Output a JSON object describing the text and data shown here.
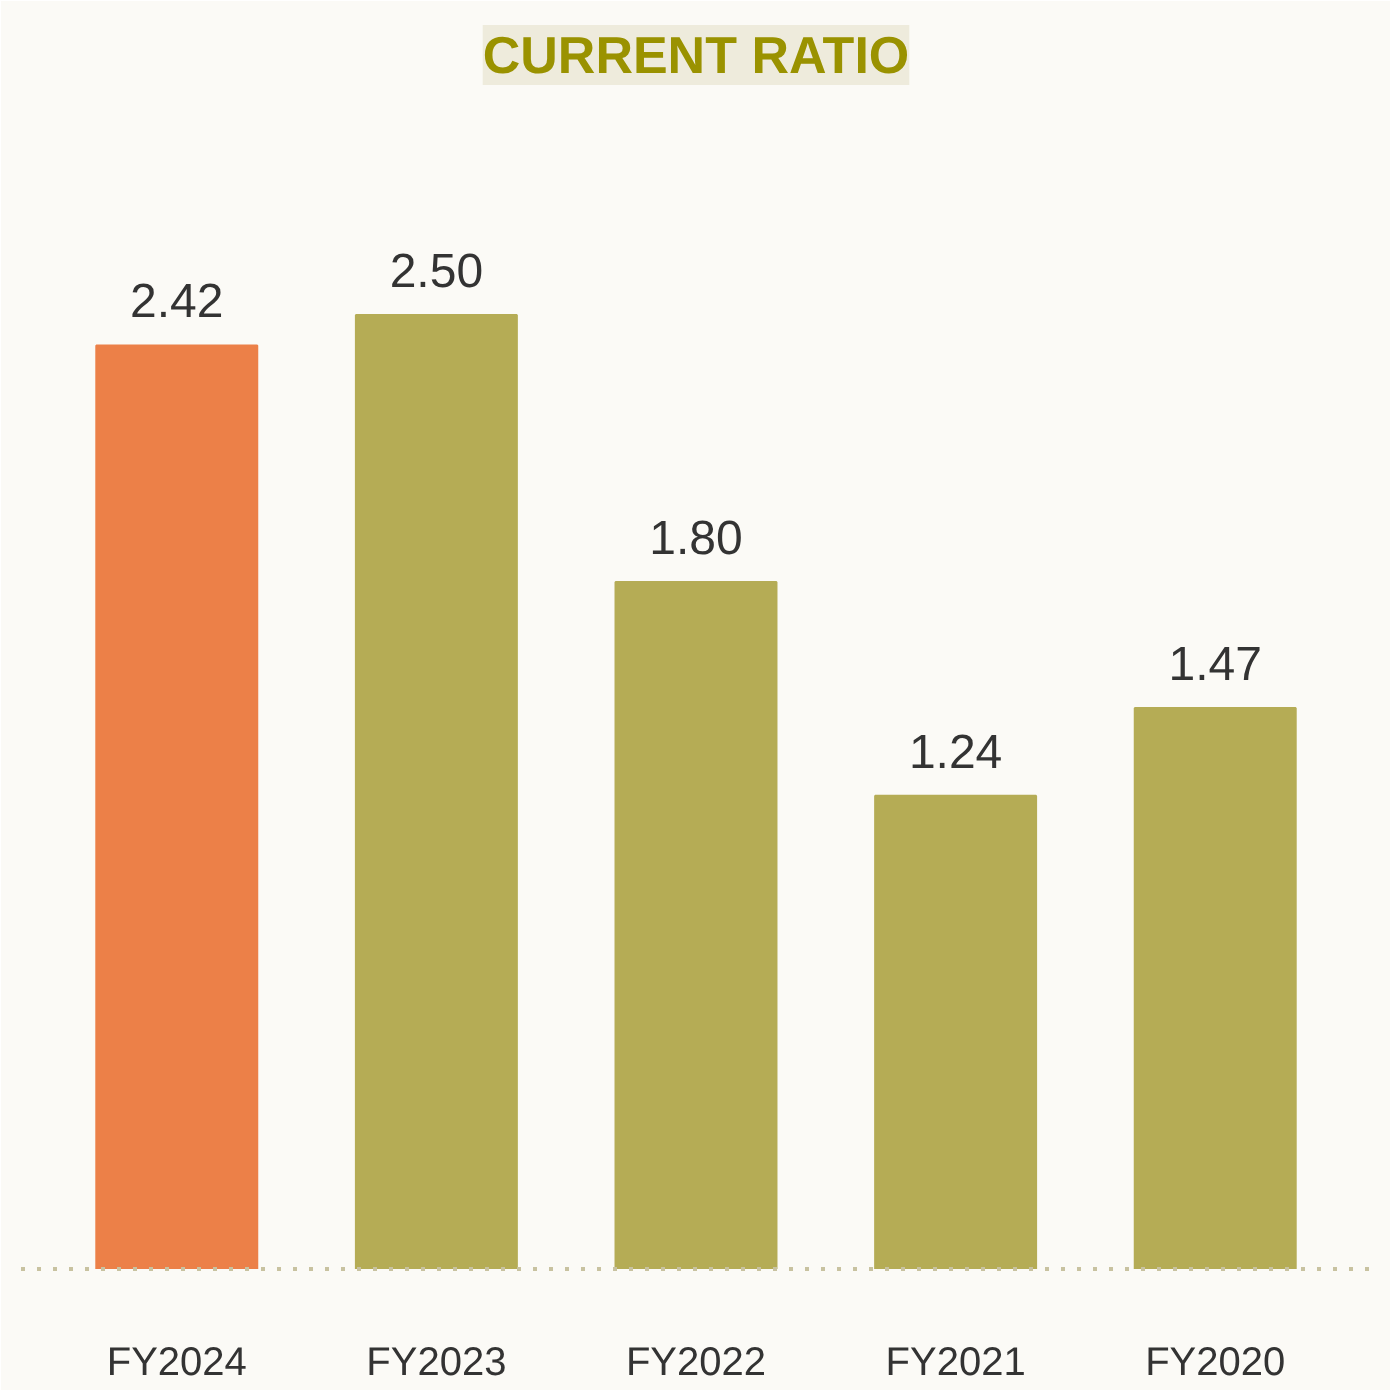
{
  "chart_data": {
    "type": "bar",
    "title": "CURRENT RATIO",
    "categories": [
      "FY2024",
      "FY2023",
      "FY2022",
      "FY2021",
      "FY2020"
    ],
    "values": [
      2.42,
      2.5,
      1.8,
      1.24,
      1.47
    ],
    "value_labels": [
      "2.42",
      "2.50",
      "1.80",
      "1.24",
      "1.47"
    ],
    "colors": [
      "#ec8048",
      "#b5ac55",
      "#b5ac55",
      "#b5ac55",
      "#b5ac55"
    ]
  }
}
